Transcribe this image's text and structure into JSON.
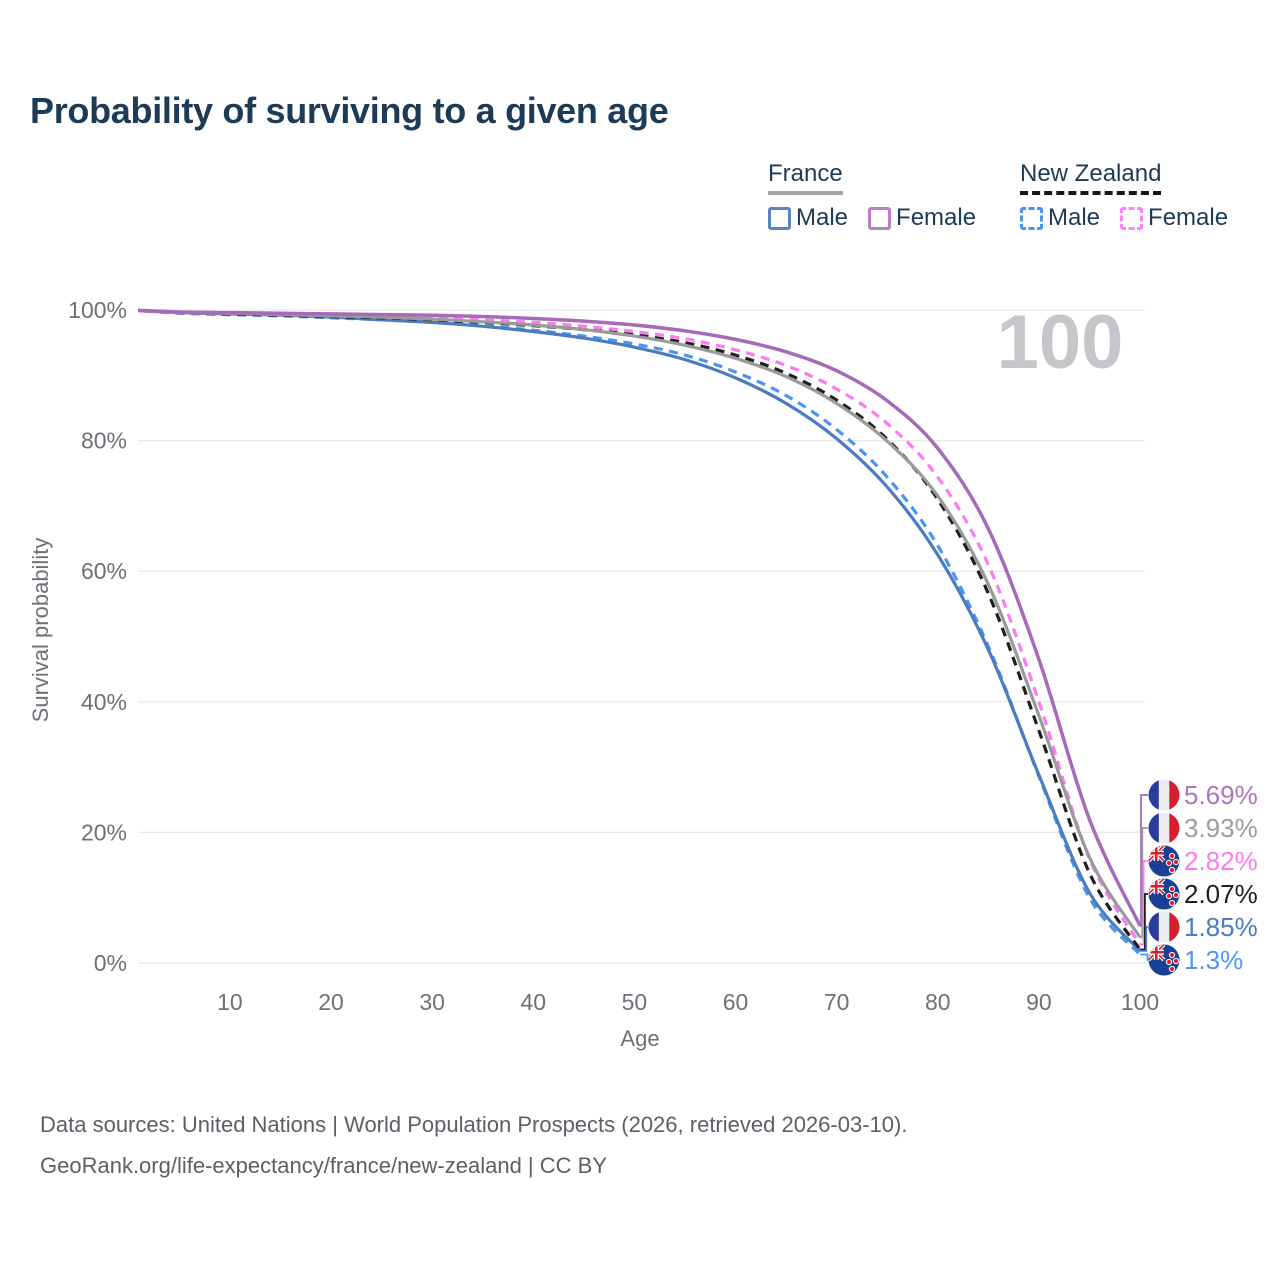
{
  "header": {
    "title": "Probability of surviving to a given age"
  },
  "legend": {
    "groups": [
      {
        "label": "France",
        "line_color": "#a6a6a6",
        "line_style": "solid",
        "items": [
          {
            "label": "Male",
            "color": "#5b85bb",
            "style": "solid"
          },
          {
            "label": "Female",
            "color": "#bd7fc4",
            "style": "solid"
          }
        ]
      },
      {
        "label": "New Zealand",
        "line_color": "#161616",
        "line_style": "dashed",
        "items": [
          {
            "label": "Male",
            "color": "#4a90f5",
            "style": "dashed"
          },
          {
            "label": "Female",
            "color": "#fb85f5",
            "style": "dashed"
          }
        ]
      }
    ]
  },
  "chart_data": {
    "type": "line",
    "title": "Probability of surviving to a given age",
    "xlabel": "Age",
    "ylabel": "Survival probability",
    "xlim": [
      0,
      100
    ],
    "ylim": [
      0,
      100
    ],
    "grid": "horizontal",
    "watermark": "100",
    "x_ticks": [
      10,
      20,
      30,
      40,
      50,
      60,
      70,
      80,
      90,
      100
    ],
    "y_ticks": [
      {
        "value": 0,
        "label": "0%"
      },
      {
        "value": 20,
        "label": "20%"
      },
      {
        "value": 40,
        "label": "40%"
      },
      {
        "value": 60,
        "label": "60%"
      },
      {
        "value": 80,
        "label": "80%"
      },
      {
        "value": 100,
        "label": "100%"
      }
    ],
    "x": [
      0,
      5,
      10,
      15,
      20,
      25,
      30,
      35,
      40,
      45,
      50,
      55,
      60,
      65,
      70,
      75,
      80,
      85,
      90,
      95,
      100
    ],
    "series": [
      {
        "id": "france-female",
        "name": "France Female",
        "country": "france",
        "color": "#a76ab8",
        "label_color": "#ab76bd",
        "dash": false,
        "end_label": "5.69%",
        "values": [
          100,
          99.7,
          99.6,
          99.5,
          99.4,
          99.3,
          99.2,
          99.0,
          98.7,
          98.3,
          97.7,
          96.8,
          95.5,
          93.6,
          90.7,
          86.1,
          78.8,
          66.5,
          46.5,
          22.0,
          5.69
        ]
      },
      {
        "id": "france-both",
        "name": "France",
        "country": "france",
        "color": "#9a9a9a",
        "label_color": "#9b9ba3",
        "dash": false,
        "end_label": "3.93%",
        "values": [
          100,
          99.6,
          99.5,
          99.3,
          99.1,
          98.9,
          98.6,
          98.2,
          97.7,
          97.0,
          96.0,
          94.6,
          92.6,
          89.8,
          85.7,
          79.9,
          71.5,
          58.0,
          37.9,
          16.2,
          3.93
        ]
      },
      {
        "id": "new-zealand-female",
        "name": "New Zealand Female",
        "country": "new-zealand",
        "color": "#fb7cf2",
        "label_color": "#fb7cf2",
        "dash": true,
        "end_label": "2.82%",
        "values": [
          100,
          99.6,
          99.5,
          99.4,
          99.2,
          99.0,
          98.8,
          98.5,
          98.1,
          97.5,
          96.7,
          95.6,
          93.9,
          91.5,
          87.9,
          82.6,
          74.4,
          61.0,
          40.0,
          16.0,
          2.82
        ]
      },
      {
        "id": "new-zealand-both",
        "name": "New Zealand",
        "country": "new-zealand",
        "color": "#1f1f1f",
        "label_color": "#1f1f1f",
        "dash": true,
        "end_label": "2.07%",
        "values": [
          100,
          99.6,
          99.4,
          99.2,
          99.0,
          98.8,
          98.5,
          98.1,
          97.6,
          97.0,
          96.2,
          95.0,
          93.1,
          90.3,
          86.2,
          80.2,
          71.0,
          56.6,
          35.6,
          13.8,
          2.07
        ]
      },
      {
        "id": "france-male",
        "name": "France Male",
        "country": "france",
        "color": "#4a7cbf",
        "label_color": "#4a7cbf",
        "dash": false,
        "end_label": "1.85%",
        "values": [
          100,
          99.6,
          99.4,
          99.2,
          98.9,
          98.5,
          98.1,
          97.5,
          96.7,
          95.7,
          94.3,
          92.4,
          89.6,
          85.7,
          80.3,
          72.9,
          62.5,
          48.0,
          28.8,
          10.8,
          1.85
        ]
      },
      {
        "id": "new-zealand-male",
        "name": "New Zealand Male",
        "country": "new-zealand",
        "color": "#4b95f2",
        "label_color": "#4f97f3",
        "dash": true,
        "end_label": "1.3%",
        "values": [
          100,
          99.5,
          99.3,
          99.1,
          98.8,
          98.5,
          98.1,
          97.6,
          96.9,
          96.0,
          94.8,
          93.1,
          90.5,
          86.9,
          81.7,
          74.4,
          63.9,
          48.5,
          28.6,
          10.0,
          1.3
        ]
      }
    ]
  },
  "footer": {
    "line1": "Data sources: United Nations | World Population Prospects (2026, retrieved 2026-03-10).",
    "line2": "GeoRank.org/life-expectancy/france/new-zealand | CC BY"
  }
}
